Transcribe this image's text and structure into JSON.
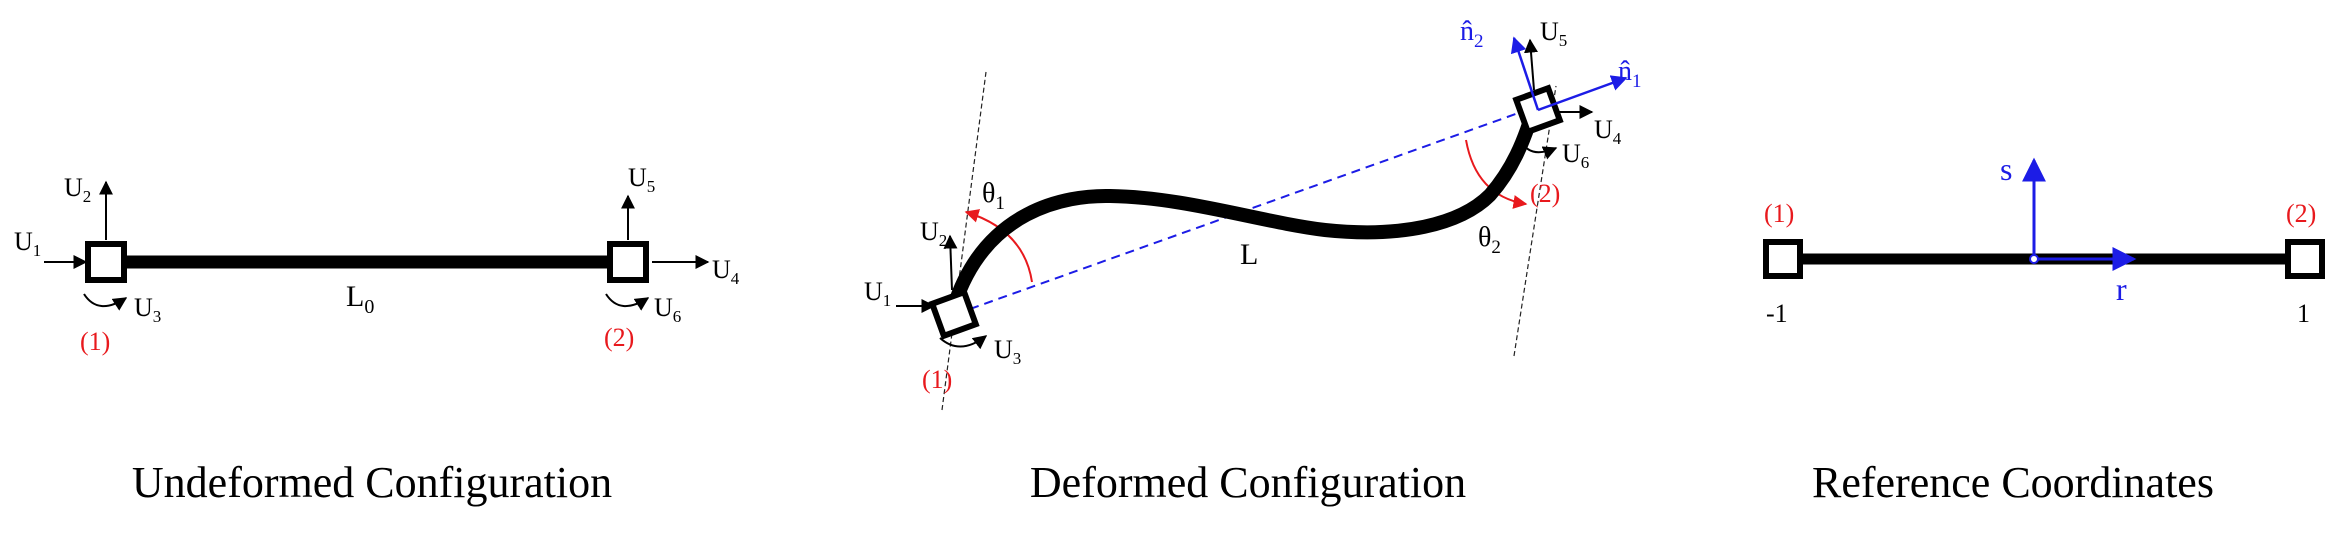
{
  "colors": {
    "ink": "#000000",
    "red": "#e8191d",
    "blue": "#1c1ce6"
  },
  "undeformed": {
    "caption": "Undeformed Configuration",
    "length_label": "L",
    "length_sub": "0",
    "node1": "(1)",
    "node2": "(2)",
    "dofs": [
      "U",
      "U",
      "U",
      "U",
      "U",
      "U"
    ],
    "dof_subs": [
      "1",
      "2",
      "3",
      "4",
      "5",
      "6"
    ]
  },
  "deformed": {
    "caption": "Deformed Configuration",
    "length_label": "L",
    "node1": "(1)",
    "node2": "(2)",
    "theta": "θ",
    "theta1_sub": "1",
    "theta2_sub": "2",
    "n_hat": "n̂",
    "n1_sub": "1",
    "n2_sub": "2",
    "dofs": [
      "U",
      "U",
      "U",
      "U",
      "U",
      "U"
    ],
    "dof_subs": [
      "1",
      "2",
      "3",
      "4",
      "5",
      "6"
    ]
  },
  "reference": {
    "caption": "Reference Coordinates",
    "node1": "(1)",
    "node2": "(2)",
    "left_coord": "-1",
    "right_coord": "1",
    "s_axis": "s",
    "r_axis": "r"
  }
}
